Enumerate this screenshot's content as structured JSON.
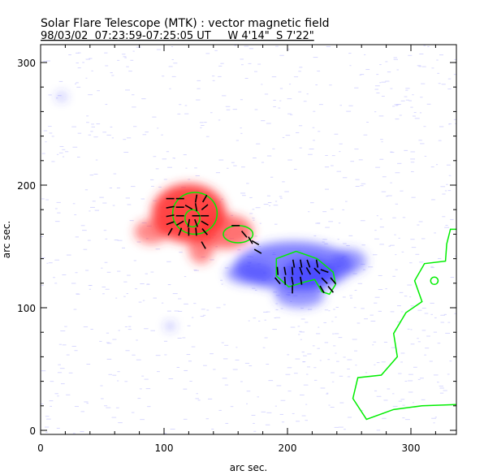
{
  "chart_data": {
    "type": "heatmap",
    "title": "Solar Flare Telescope (MTK) : vector magnetic field",
    "subtitle": "98/03/02  07:23:59-07:25:05 UT     W 4'14\"  S 7'22\"",
    "xlabel": "arc sec.",
    "ylabel": "arc sec.",
    "xlim": [
      0,
      337
    ],
    "ylim": [
      0,
      314
    ],
    "xticks": [
      0,
      100,
      200,
      300
    ],
    "yticks": [
      0,
      100,
      200,
      300
    ],
    "colors": {
      "positive": "#ff3030",
      "negative": "#4040ff",
      "contour": "#00ee00",
      "vector": "#000000"
    },
    "positive_regions": [
      {
        "cx": 120,
        "cy": 177,
        "rx": 30,
        "ry": 24,
        "strength": 1.0
      },
      {
        "cx": 90,
        "cy": 162,
        "rx": 14,
        "ry": 10,
        "strength": 0.4
      },
      {
        "cx": 150,
        "cy": 162,
        "rx": 22,
        "ry": 14,
        "strength": 0.6
      },
      {
        "cx": 130,
        "cy": 148,
        "rx": 10,
        "ry": 12,
        "strength": 0.45
      }
    ],
    "negative_regions": [
      {
        "cx": 205,
        "cy": 134,
        "rx": 48,
        "ry": 20,
        "strength": 0.7
      },
      {
        "cx": 218,
        "cy": 128,
        "rx": 22,
        "ry": 12,
        "strength": 1.0
      },
      {
        "cx": 170,
        "cy": 128,
        "rx": 20,
        "ry": 9,
        "strength": 0.5
      },
      {
        "cx": 210,
        "cy": 110,
        "rx": 20,
        "ry": 10,
        "strength": 0.5
      },
      {
        "cx": 250,
        "cy": 138,
        "rx": 14,
        "ry": 10,
        "strength": 0.45
      },
      {
        "cx": 17,
        "cy": 272,
        "rx": 4,
        "ry": 3,
        "strength": 0.3
      },
      {
        "cx": 105,
        "cy": 85,
        "rx": 4,
        "ry": 3,
        "strength": 0.25
      }
    ],
    "contours": {
      "red_outer": {
        "cx": 125,
        "cy": 177,
        "rx": 18,
        "ry": 17
      },
      "red_inner": {
        "cx": 123,
        "cy": 173,
        "rx": 6,
        "ry": 7
      },
      "red_small": {
        "cx": 160,
        "cy": 160,
        "rx": 12,
        "ry": 7
      },
      "blue_core": [
        [
          191,
          140
        ],
        [
          207,
          146
        ],
        [
          224,
          140
        ],
        [
          237,
          129
        ],
        [
          239,
          119
        ],
        [
          234,
          111
        ],
        [
          228,
          113
        ],
        [
          222,
          123
        ],
        [
          214,
          121
        ],
        [
          201,
          117
        ],
        [
          191,
          126
        ]
      ],
      "limb": [
        [
          337,
          164
        ],
        [
          332,
          164
        ],
        [
          329,
          152
        ],
        [
          328,
          138
        ],
        [
          311,
          136
        ],
        [
          303,
          122
        ],
        [
          309,
          105
        ],
        [
          296,
          96
        ],
        [
          286,
          79
        ],
        [
          289,
          60
        ],
        [
          276,
          45
        ],
        [
          257,
          43
        ],
        [
          253,
          26
        ],
        [
          264,
          9
        ],
        [
          286,
          17
        ],
        [
          309,
          20
        ],
        [
          337,
          21
        ]
      ],
      "limb_loop": {
        "cx": 319,
        "cy": 122,
        "rx": 3,
        "ry": 3
      }
    },
    "vectors": [
      [
        105,
        189,
        0
      ],
      [
        113,
        189,
        0
      ],
      [
        126,
        189,
        80
      ],
      [
        133,
        189,
        60
      ],
      [
        105,
        182,
        10
      ],
      [
        113,
        182,
        0
      ],
      [
        120,
        182,
        150
      ],
      [
        126,
        182,
        100
      ],
      [
        133,
        182,
        40
      ],
      [
        105,
        175,
        10
      ],
      [
        113,
        175,
        0
      ],
      [
        126,
        175,
        0
      ],
      [
        133,
        175,
        0
      ],
      [
        105,
        169,
        20
      ],
      [
        113,
        169,
        30
      ],
      [
        120,
        169,
        80
      ],
      [
        126,
        169,
        110
      ],
      [
        133,
        169,
        150
      ],
      [
        105,
        162,
        60
      ],
      [
        113,
        162,
        70
      ],
      [
        120,
        162,
        90
      ],
      [
        126,
        162,
        95
      ],
      [
        133,
        162,
        130
      ],
      [
        132,
        151,
        120
      ],
      [
        158,
        167,
        0
      ],
      [
        165,
        160,
        130
      ],
      [
        170,
        155,
        120
      ],
      [
        174,
        153,
        150
      ],
      [
        176,
        146,
        150
      ],
      [
        205,
        136,
        100
      ],
      [
        211,
        136,
        100
      ],
      [
        217,
        136,
        110
      ],
      [
        224,
        136,
        100
      ],
      [
        192,
        130,
        95
      ],
      [
        198,
        130,
        100
      ],
      [
        204,
        130,
        95
      ],
      [
        211,
        130,
        110
      ],
      [
        217,
        130,
        120
      ],
      [
        224,
        130,
        135
      ],
      [
        230,
        130,
        160
      ],
      [
        192,
        122,
        130
      ],
      [
        198,
        122,
        95
      ],
      [
        204,
        122,
        100
      ],
      [
        211,
        122,
        100
      ],
      [
        230,
        122,
        135
      ],
      [
        237,
        122,
        130
      ],
      [
        204,
        115,
        90
      ],
      [
        228,
        115,
        120
      ],
      [
        235,
        115,
        130
      ]
    ]
  }
}
